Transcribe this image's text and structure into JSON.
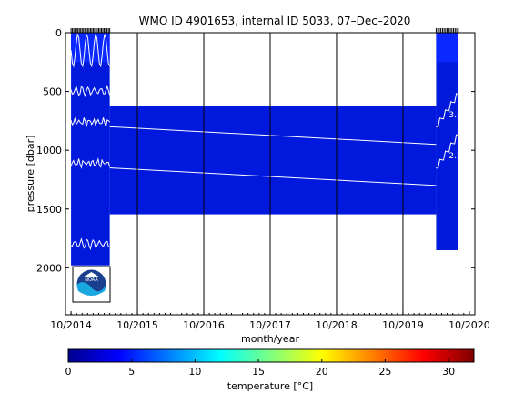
{
  "chart_data": {
    "type": "heatmap",
    "title": "WMO ID 4901653, internal ID 5033, 07–Dec–2020",
    "xlabel": "month/year",
    "ylabel": "pressure [dbar]",
    "colorbar_label": "temperature [°C]",
    "x_ticks": [
      "10/2014",
      "10/2015",
      "10/2016",
      "10/2017",
      "10/2018",
      "10/2019",
      "10/2020"
    ],
    "x_range": [
      "09/2014",
      "11/2020"
    ],
    "y_ticks": [
      0,
      500,
      1000,
      1500,
      2000
    ],
    "ylim": [
      0,
      2400
    ],
    "y_reversed": true,
    "colorbar_ticks": [
      0,
      5,
      10,
      15,
      20,
      25,
      30
    ],
    "color_range": [
      0,
      32
    ],
    "colormap": "jet",
    "grid": "vertical lines at each October",
    "coverage": [
      {
        "start": "10/2014",
        "end": "05/2015",
        "pressure_max": 1980
      },
      {
        "start": "05/2015",
        "end": "04/2020",
        "pressure_min": 620,
        "pressure_max": 1545
      },
      {
        "start": "04/2020",
        "end": "08/2020",
        "pressure_max": 1850
      }
    ],
    "contours": [
      {
        "label": "3.5",
        "start_pressure": 800,
        "end_pressure": 950
      },
      {
        "label": "2.5",
        "start_pressure": 1150,
        "end_pressure": 1300
      }
    ],
    "accent_colors": {
      "deep_water": "#0019dc",
      "contour": "#ffffff",
      "grid": "#000000"
    }
  },
  "logo": {
    "text": "NOAA"
  }
}
